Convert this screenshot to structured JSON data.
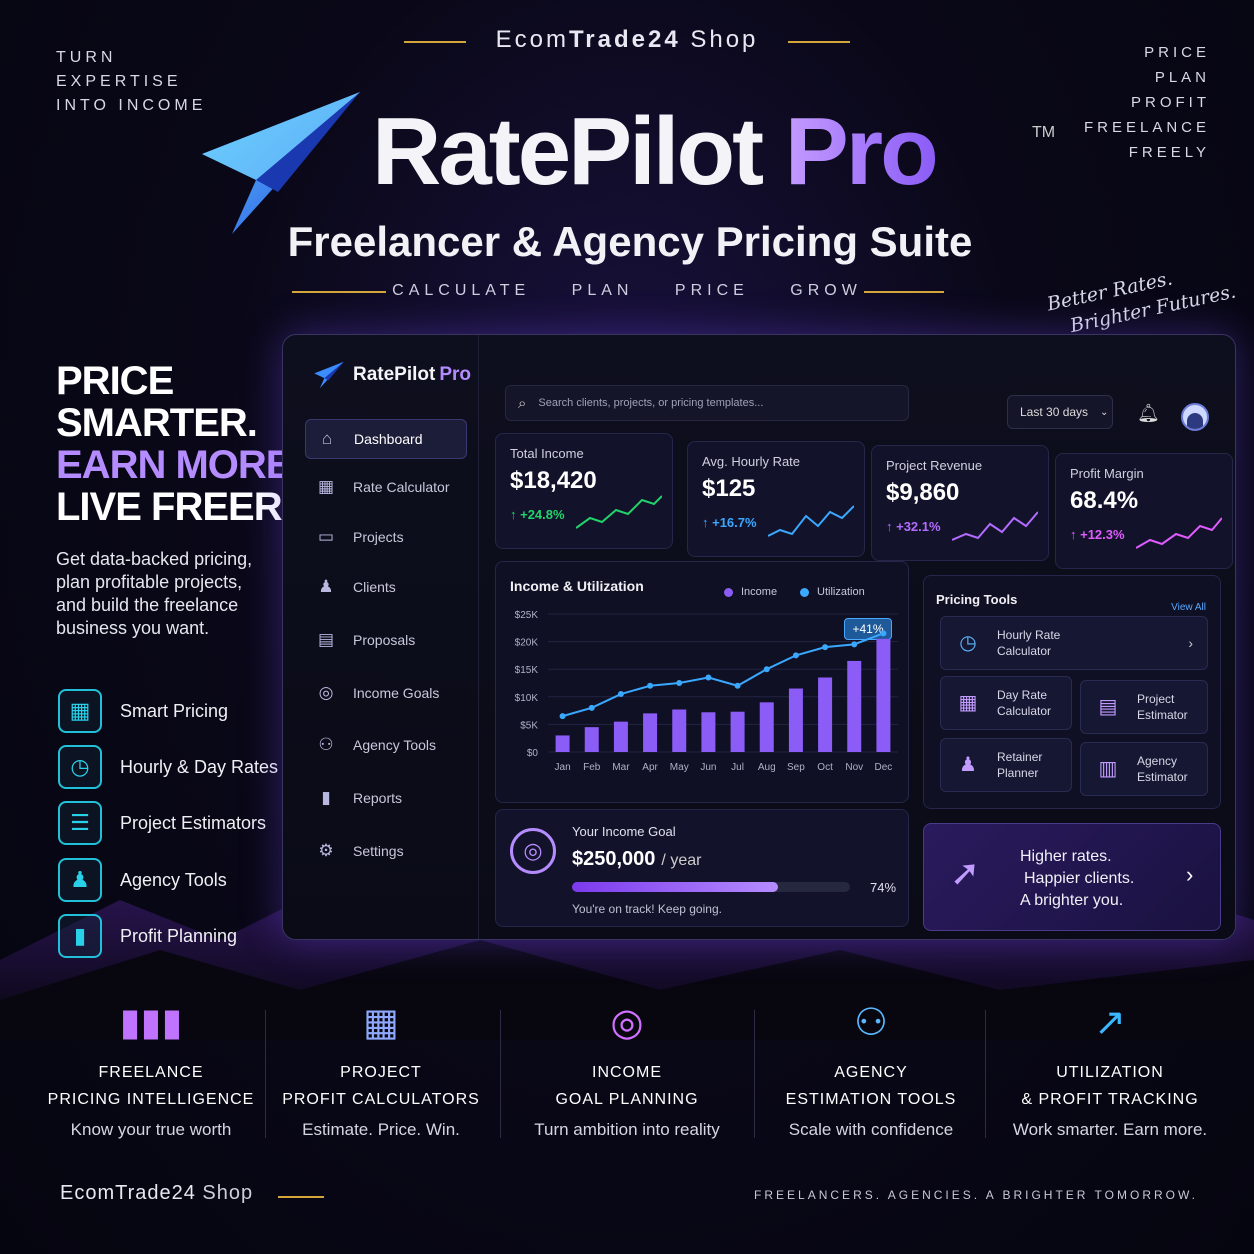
{
  "brand": {
    "name_light": "Ecom",
    "name_bold": "Trade24",
    "name_suffix": " Shop"
  },
  "corner_left": [
    "TURN",
    "EXPERTISE",
    "INTO INCOME"
  ],
  "corner_right": [
    "PRICE",
    "PLAN",
    "PROFIT",
    "FREELANCE",
    "FREELY"
  ],
  "title": {
    "part1": "RatePilot",
    "part2": "Pro",
    "tm": "TM"
  },
  "subtitle": "Freelancer & Agency Pricing Suite",
  "taglines": [
    "CALCULATE",
    "PLAN",
    "PRICE",
    "GROW"
  ],
  "script_tag": {
    "line1": "Better Rates.",
    "line2": "Brighter Futures."
  },
  "hero": {
    "line1": "PRICE",
    "line2": "SMARTER.",
    "line3": "EARN MORE.",
    "line4": "LIVE FREER.",
    "desc": "Get data-backed pricing, plan profitable projects, and build the freelance business you want."
  },
  "features": [
    {
      "label": "Smart Pricing",
      "icon": "calculator-icon"
    },
    {
      "label": "Hourly & Day Rates",
      "icon": "clock-icon"
    },
    {
      "label": "Project Estimators",
      "icon": "clipboard-icon"
    },
    {
      "label": "Agency Tools",
      "icon": "team-icon"
    },
    {
      "label": "Profit Planning",
      "icon": "bar-chart-icon"
    }
  ],
  "dashboard": {
    "logo": {
      "name": "RatePilot",
      "pro": "Pro"
    },
    "nav": [
      {
        "label": "Dashboard",
        "icon": "home-icon",
        "active": true
      },
      {
        "label": "Rate Calculator",
        "icon": "calculator-icon"
      },
      {
        "label": "Projects",
        "icon": "folder-icon"
      },
      {
        "label": "Clients",
        "icon": "users-icon"
      },
      {
        "label": "Proposals",
        "icon": "document-icon"
      },
      {
        "label": "Income Goals",
        "icon": "target-icon"
      },
      {
        "label": "Agency Tools",
        "icon": "team-icon"
      },
      {
        "label": "Reports",
        "icon": "bar-chart-icon"
      },
      {
        "label": "Settings",
        "icon": "gear-icon"
      }
    ],
    "search_placeholder": "Search clients, projects, or pricing templates...",
    "range": "Last 30 days",
    "kpis": [
      {
        "label": "Total Income",
        "value": "$18,420",
        "change": "↑ +24.8%",
        "color": "#22d36a"
      },
      {
        "label": "Avg. Hourly Rate",
        "value": "$125",
        "change": "↑ +16.7%",
        "color": "#3aa8ff"
      },
      {
        "label": "Project Revenue",
        "value": "$9,860",
        "change": "↑ +32.1%",
        "color": "#b26bff"
      },
      {
        "label": "Profit Margin",
        "value": "68.4%",
        "change": "↑ +12.3%",
        "color": "#e05cff"
      }
    ],
    "chart_data": {
      "type": "bar",
      "title": "Income & Utilization",
      "categories": [
        "Jan",
        "Feb",
        "Mar",
        "Apr",
        "May",
        "Jun",
        "Jul",
        "Aug",
        "Sep",
        "Oct",
        "Nov",
        "Dec"
      ],
      "series": [
        {
          "name": "Income",
          "values": [
            3000,
            4500,
            5500,
            7000,
            7700,
            7200,
            7300,
            9000,
            11500,
            13500,
            16500,
            20500
          ],
          "color": "#8b5cf6"
        },
        {
          "name": "Utilization",
          "values": [
            6500,
            8000,
            10500,
            12000,
            12500,
            13500,
            12000,
            15000,
            17500,
            19000,
            19500,
            21500
          ],
          "color": "#3aa8ff"
        }
      ],
      "yticks": [
        "$25K",
        "$20K",
        "$15K",
        "$10K",
        "$5K",
        "$0"
      ],
      "ylim": [
        0,
        25000
      ],
      "annotation": "+41%"
    },
    "pricing_tools": {
      "title": "Pricing Tools",
      "view_all": "View All",
      "items": [
        {
          "l1": "Hourly Rate",
          "l2": "Calculator",
          "icon": "clock-icon"
        },
        {
          "l1": "Day Rate",
          "l2": "Calculator",
          "icon": "calendar-icon"
        },
        {
          "l1": "Project",
          "l2": "Estimator",
          "icon": "document-icon"
        },
        {
          "l1": "Retainer",
          "l2": "Planner",
          "icon": "users-icon"
        },
        {
          "l1": "Agency",
          "l2": "Estimator",
          "icon": "building-icon"
        }
      ]
    },
    "goal": {
      "label": "Your Income Goal",
      "value": "$250,000",
      "period": "/ year",
      "percent_text": "74%",
      "progress": 0.74,
      "message": "You're on track! Keep going."
    },
    "promo": {
      "l1": "Higher rates.",
      "l2": "Happier clients.",
      "l3": "A brighter you."
    }
  },
  "bottom": [
    {
      "h1": "FREELANCE",
      "h2": "PRICING INTELLIGENCE",
      "sub": "Know your true worth",
      "icon": "bar-chart-icon",
      "color": "#c073ff"
    },
    {
      "h1": "PROJECT",
      "h2": "PROFIT CALCULATORS",
      "sub": "Estimate. Price. Win.",
      "icon": "calculator-icon",
      "color": "#8ea8ff"
    },
    {
      "h1": "INCOME",
      "h2": "GOAL PLANNING",
      "sub": "Turn ambition into reality",
      "icon": "target-icon",
      "color": "#d070ff"
    },
    {
      "h1": "AGENCY",
      "h2": "ESTIMATION TOOLS",
      "sub": "Scale with confidence",
      "icon": "team-icon",
      "color": "#5ab8ff"
    },
    {
      "h1": "UTILIZATION",
      "h2": "& PROFIT TRACKING",
      "sub": "Work smarter. Earn more.",
      "icon": "trend-up-icon",
      "color": "#3ab8ff"
    }
  ],
  "footer": {
    "brand_bold": "EcomTrade24",
    "brand_light": " Shop",
    "tag": "FREELANCERS. AGENCIES. A BRIGHTER TOMORROW."
  }
}
